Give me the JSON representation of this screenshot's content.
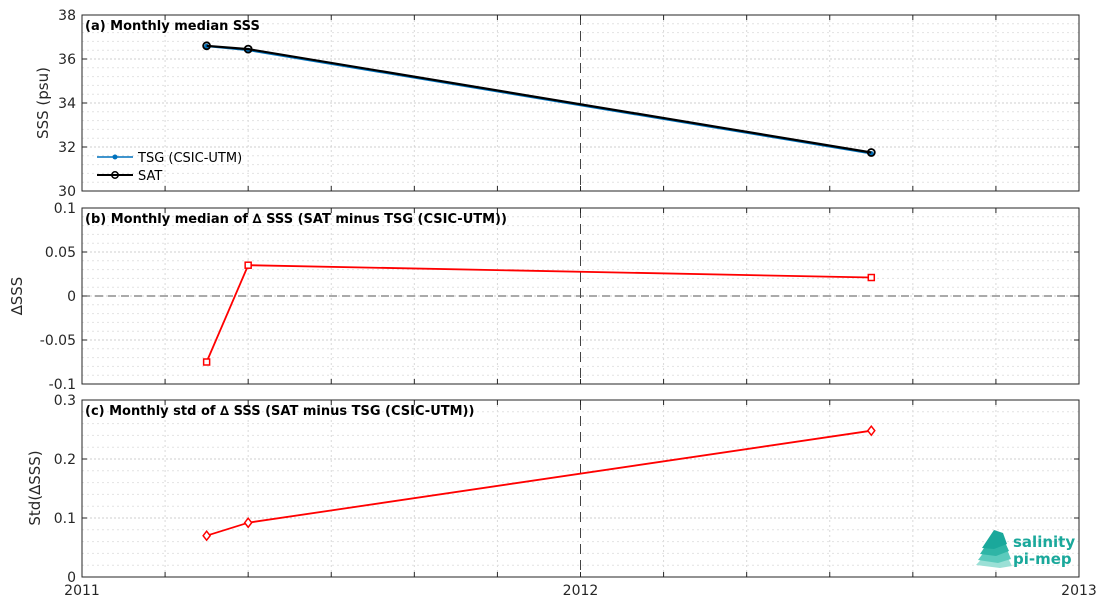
{
  "chart_data": [
    {
      "type": "line",
      "title": "(a) Monthly median SSS",
      "ylabel": "SSS (psu)",
      "xlim": [
        2011,
        2013
      ],
      "ylim": [
        30,
        38
      ],
      "yticks": [
        "30",
        "32",
        "34",
        "36",
        "38"
      ],
      "grid": true,
      "legend_position": "bottom-left",
      "series": [
        {
          "name": "TSG (CSIC-UTM)",
          "color": "#0072bd",
          "marker": "dot",
          "x": [
            "2011-04",
            "2011-05",
            "2012-08"
          ],
          "y": [
            36.58,
            36.4,
            31.7
          ]
        },
        {
          "name": "SAT",
          "color": "#000000",
          "marker": "circle",
          "x": [
            "2011-04",
            "2011-05",
            "2012-08"
          ],
          "y": [
            36.6,
            36.45,
            31.75
          ]
        }
      ]
    },
    {
      "type": "line",
      "title": "(b) Monthly median of ∆ SSS (SAT minus TSG (CSIC-UTM))",
      "ylabel": "∆SSS",
      "xlim": [
        2011,
        2013
      ],
      "ylim": [
        -0.1,
        0.1
      ],
      "yticks": [
        "-0.1",
        "-0.05",
        "0",
        "0.05",
        "0.1"
      ],
      "grid": true,
      "series": [
        {
          "color": "#ff0000",
          "marker": "square",
          "x": [
            "2011-04",
            "2011-05",
            "2012-08"
          ],
          "y": [
            -0.075,
            0.035,
            0.021
          ]
        }
      ]
    },
    {
      "type": "line",
      "title": "(c) Monthly std of ∆ SSS (SAT minus TSG (CSIC-UTM))",
      "ylabel": "Std(∆SSS)",
      "xlim": [
        2011,
        2013
      ],
      "ylim": [
        0,
        0.3
      ],
      "yticks": [
        "0",
        "0.1",
        "0.2",
        "0.3"
      ],
      "xticks": [
        "2011",
        "2012",
        "2013"
      ],
      "grid": true,
      "series": [
        {
          "color": "#ff0000",
          "marker": "diamond",
          "x": [
            "2011-04",
            "2011-05",
            "2012-08"
          ],
          "y": [
            0.07,
            0.092,
            0.248
          ]
        }
      ]
    }
  ],
  "logo": {
    "line1": "salinity",
    "line2": "pi-mep",
    "color": "#1aa89b"
  }
}
